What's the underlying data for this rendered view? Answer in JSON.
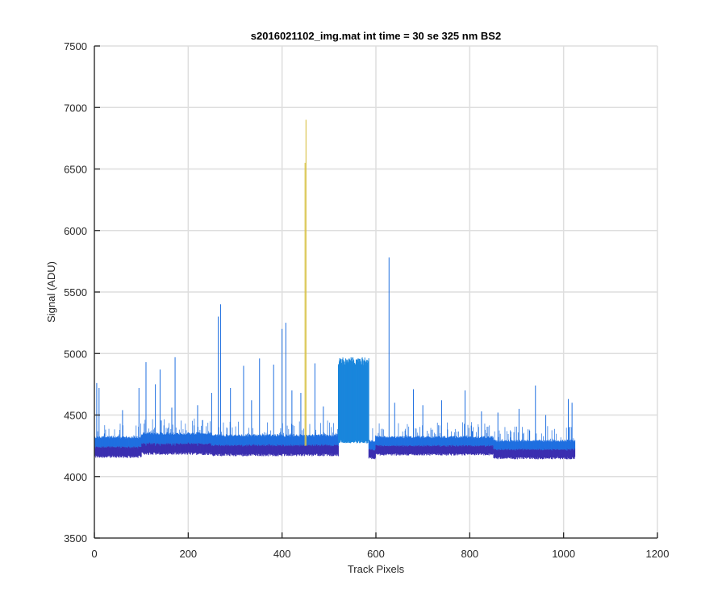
{
  "chart_data": {
    "type": "line",
    "title": "s2016021102_img.mat int time = 30 se  325 nm BS2",
    "xlabel": "Track Pixels",
    "ylabel": "Signal (ADU)",
    "xlim": [
      0,
      1200
    ],
    "ylim": [
      3500,
      7500
    ],
    "xticks": [
      "0",
      "200",
      "400",
      "600",
      "800",
      "1000",
      "1200"
    ],
    "yticks": [
      "3500",
      "4000",
      "4500",
      "5000",
      "5500",
      "6000",
      "6500",
      "7000",
      "7500"
    ],
    "grid": true,
    "x_data_range": [
      1,
      1024
    ],
    "colors": {
      "band_low": "#3b2fb0",
      "band_high": "#1f6fe0",
      "plateau": "#1a86dc",
      "spike": "#d9c247"
    },
    "baseline_bands": [
      {
        "x": [
          0,
          100
        ],
        "low": 4150,
        "high": 4330
      },
      {
        "x": [
          100,
          250
        ],
        "low": 4175,
        "high": 4360
      },
      {
        "x": [
          250,
          520
        ],
        "low": 4165,
        "high": 4345
      },
      {
        "x": [
          600,
          850
        ],
        "low": 4170,
        "high": 4330
      },
      {
        "x": [
          850,
          1024
        ],
        "low": 4140,
        "high": 4300
      }
    ],
    "plateau": {
      "x": [
        520,
        585
      ],
      "low": 4330,
      "high": 4970
    },
    "spikes": [
      {
        "x": 5,
        "y": 4760
      },
      {
        "x": 10,
        "y": 4720
      },
      {
        "x": 60,
        "y": 4540
      },
      {
        "x": 95,
        "y": 4720
      },
      {
        "x": 110,
        "y": 4930
      },
      {
        "x": 130,
        "y": 4750
      },
      {
        "x": 140,
        "y": 4870
      },
      {
        "x": 165,
        "y": 4560
      },
      {
        "x": 172,
        "y": 4970
      },
      {
        "x": 220,
        "y": 4580
      },
      {
        "x": 250,
        "y": 4680
      },
      {
        "x": 264,
        "y": 5300
      },
      {
        "x": 269,
        "y": 5400
      },
      {
        "x": 290,
        "y": 4720
      },
      {
        "x": 318,
        "y": 4900
      },
      {
        "x": 335,
        "y": 4620
      },
      {
        "x": 352,
        "y": 4960
      },
      {
        "x": 382,
        "y": 4910
      },
      {
        "x": 400,
        "y": 5200
      },
      {
        "x": 408,
        "y": 5250
      },
      {
        "x": 421,
        "y": 4700
      },
      {
        "x": 440,
        "y": 4680
      },
      {
        "x": 449,
        "y": 6550
      },
      {
        "x": 451,
        "y": 6900
      },
      {
        "x": 470,
        "y": 4920
      },
      {
        "x": 488,
        "y": 4570
      },
      {
        "x": 628,
        "y": 5780
      },
      {
        "x": 640,
        "y": 4600
      },
      {
        "x": 680,
        "y": 4710
      },
      {
        "x": 700,
        "y": 4580
      },
      {
        "x": 740,
        "y": 4620
      },
      {
        "x": 790,
        "y": 4700
      },
      {
        "x": 825,
        "y": 4530
      },
      {
        "x": 860,
        "y": 4520
      },
      {
        "x": 905,
        "y": 4550
      },
      {
        "x": 940,
        "y": 4740
      },
      {
        "x": 962,
        "y": 4500
      },
      {
        "x": 1010,
        "y": 4630
      },
      {
        "x": 1018,
        "y": 4600
      }
    ]
  }
}
